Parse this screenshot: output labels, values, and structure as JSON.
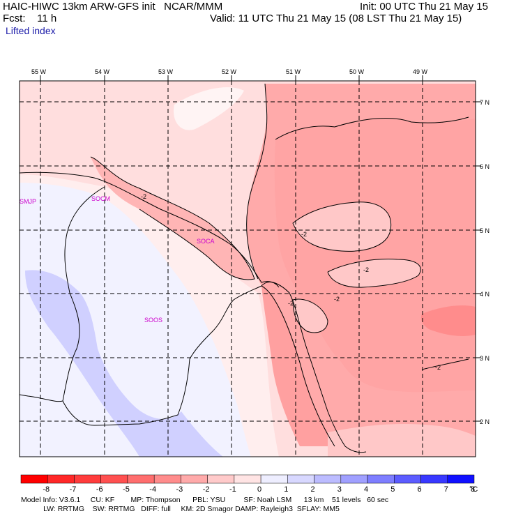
{
  "header": {
    "left_line1": "HAIC-HIWC 13km ARW-GFS init   NCAR/MMM",
    "left_line2": "Fcst:    11 h",
    "right_line1": "Init: 00 UTC Thu 21 May 15",
    "right_line2": "Valid: 11 UTC Thu 21 May 15 (08 LST Thu 21 May 15)",
    "field_name": "Lifted index"
  },
  "map": {
    "lon_labels": [
      "55 W",
      "54 W",
      "53 W",
      "52 W",
      "51 W",
      "50 W",
      "49 W"
    ],
    "lat_labels": [
      "7 N",
      "6 N",
      "5 N",
      "4 N",
      "3 N",
      "2 N"
    ],
    "stations": [
      "SMJP",
      "SOCM",
      "SOCA",
      "SOOS"
    ],
    "contour_labels": [
      "-2",
      "-2",
      "-2",
      "-2",
      "-2",
      "-2"
    ]
  },
  "colorbar": {
    "ticks": [
      "-8",
      "-7",
      "-6",
      "-5",
      "-4",
      "-3",
      "-2",
      "-1",
      "0",
      "1",
      "2",
      "3",
      "4",
      "5",
      "6",
      "7",
      "8"
    ],
    "unit": "°C",
    "colors": [
      "#ff0000",
      "#ff2828",
      "#ff3c3c",
      "#ff5050",
      "#ff6e6e",
      "#ff8c8c",
      "#ffaaaa",
      "#ffcaca",
      "#ffe4e4",
      "#eeeeff",
      "#d8d8ff",
      "#bcbcff",
      "#a0a0ff",
      "#7e7eff",
      "#5c5cff",
      "#3838ff",
      "#1010ff"
    ]
  },
  "footer": {
    "line1": "Model Info: V3.6.1     CU: KF        MP: Thompson      PBL: YSU         SF: Noah LSM      13 km    51 levels   60 sec",
    "line2": "           LW: RRTMG    SW: RRTMG   DIFF: full     KM: 2D Smagor DAMP: Rayleigh3  SFLAY: MM5"
  }
}
